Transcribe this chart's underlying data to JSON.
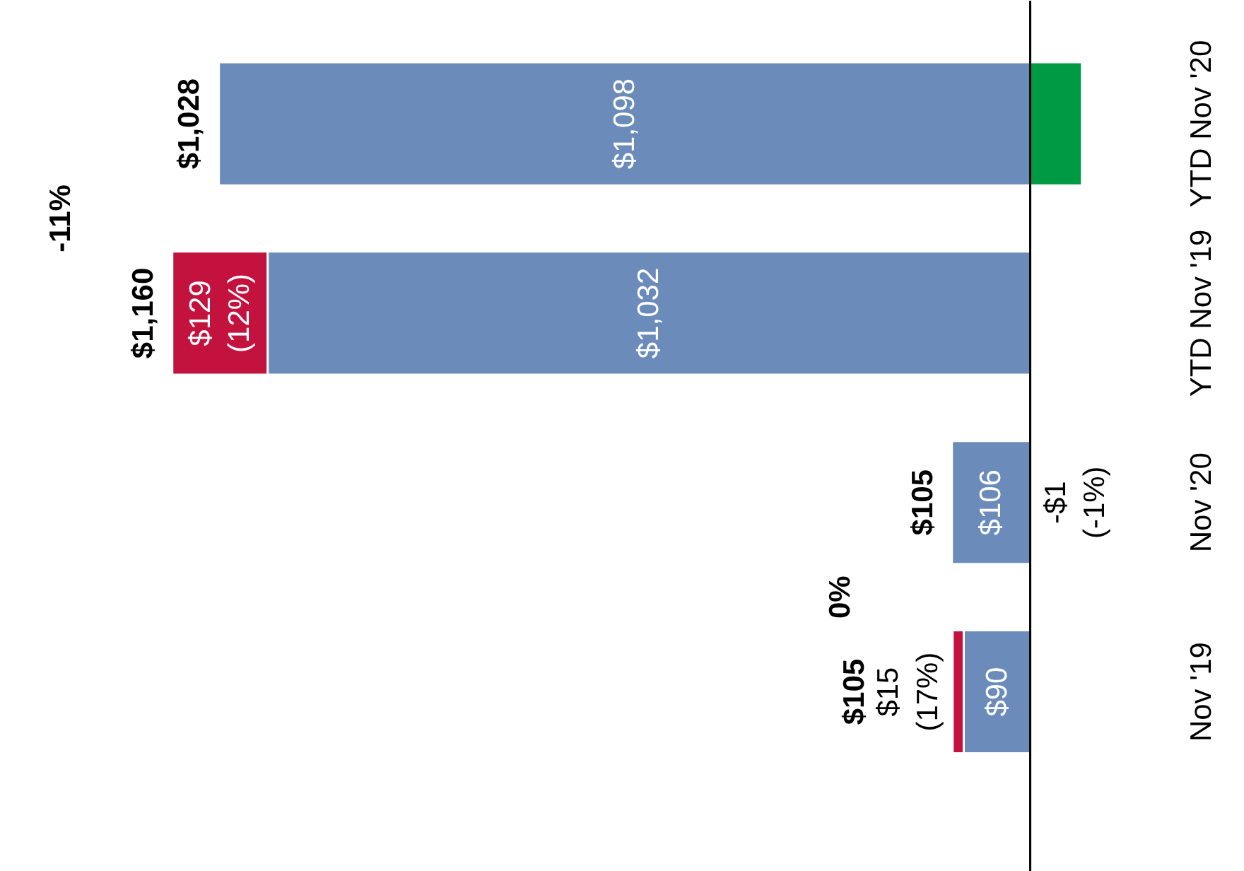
{
  "chart_data": {
    "type": "bar",
    "orientation": "horizontal",
    "stacked": true,
    "categories": [
      "YTD Nov '20",
      "YTD Nov '19",
      "Nov '20",
      "Nov '19"
    ],
    "series": [
      {
        "color": "#6b8cba",
        "values": [
          1098,
          1032,
          106,
          90
        ],
        "value_labels": [
          "$1,098",
          "$1,032",
          "$106",
          "$90"
        ]
      },
      {
        "color": "#c4123f",
        "values": [
          null,
          129,
          null,
          15
        ],
        "value_labels": [
          null,
          "$129\n(12%)",
          null,
          "$15\n(17%)"
        ]
      },
      {
        "color": "#009a44",
        "values": [
          -70,
          null,
          -1,
          null
        ],
        "value_labels": [
          null,
          null,
          "-$1\n(-1%)",
          null
        ]
      }
    ],
    "totals": [
      "$1,028",
      "$1,160",
      "$105",
      "$105"
    ],
    "annotations": [
      "-11%",
      "0%"
    ],
    "grid": false
  }
}
